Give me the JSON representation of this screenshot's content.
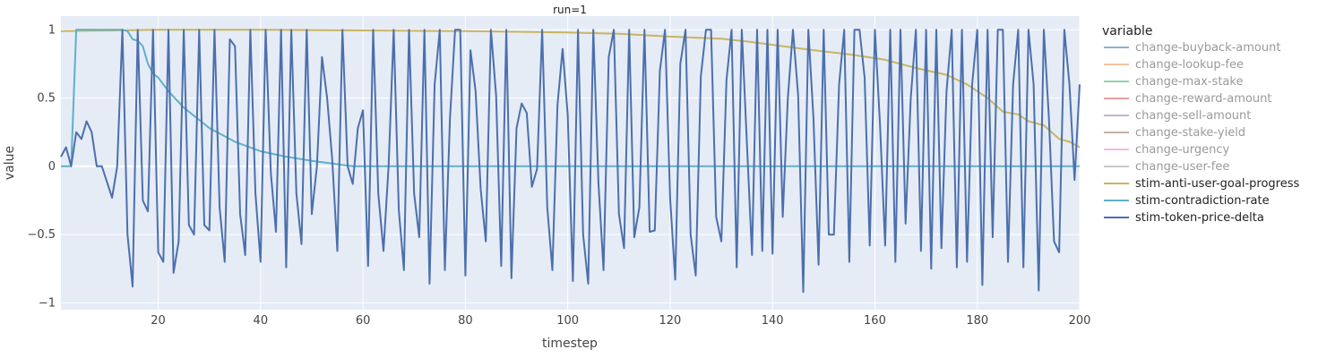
{
  "chart_data": {
    "type": "line",
    "title": "run=1",
    "xlabel": "timestep",
    "ylabel": "value",
    "xlim": [
      1,
      200
    ],
    "ylim": [
      -1.05,
      1.1
    ],
    "x_ticks": [
      20,
      40,
      60,
      80,
      100,
      120,
      140,
      160,
      180,
      200
    ],
    "y_ticks": [
      {
        "value": 1,
        "label": "1"
      },
      {
        "value": 0.5,
        "label": "0.5"
      },
      {
        "value": 0,
        "label": "0"
      },
      {
        "value": -0.5,
        "label": "−0.5"
      },
      {
        "value": -1,
        "label": "−1"
      }
    ],
    "grid": true,
    "legend": {
      "title": "variable",
      "placement": "right"
    },
    "series": [
      {
        "name": "change-buyback-amount",
        "color": "#8fb0d4",
        "muted": true,
        "key_points": []
      },
      {
        "name": "change-lookup-fee",
        "color": "#f3c4a0",
        "muted": true,
        "key_points": []
      },
      {
        "name": "change-max-stake",
        "color": "#93d2a8",
        "muted": true,
        "key_points": []
      },
      {
        "name": "change-reward-amount",
        "color": "#e6a1a2",
        "muted": true,
        "key_points": []
      },
      {
        "name": "change-sell-amount",
        "color": "#c3b3d8",
        "muted": true,
        "key_points": []
      },
      {
        "name": "change-stake-yield",
        "color": "#c4b2a6",
        "muted": true,
        "key_points": []
      },
      {
        "name": "change-urgency",
        "color": "#f0bde0",
        "muted": true,
        "key_points": []
      },
      {
        "name": "change-user-fee",
        "color": "#c8c8c8",
        "muted": true,
        "key_points": []
      },
      {
        "name": "stim-anti-user-goal-progress",
        "color": "#c9b561",
        "muted": false,
        "key_points": [
          [
            1,
            0.99
          ],
          [
            20,
            1.0
          ],
          [
            40,
            1.0
          ],
          [
            60,
            0.995
          ],
          [
            80,
            0.99
          ],
          [
            100,
            0.98
          ],
          [
            110,
            0.97
          ],
          [
            120,
            0.95
          ],
          [
            130,
            0.935
          ],
          [
            136,
            0.91
          ],
          [
            142,
            0.88
          ],
          [
            148,
            0.85
          ],
          [
            155,
            0.82
          ],
          [
            162,
            0.78
          ],
          [
            168,
            0.72
          ],
          [
            174,
            0.67
          ],
          [
            178,
            0.6
          ],
          [
            182,
            0.5
          ],
          [
            185,
            0.4
          ],
          [
            188,
            0.38
          ],
          [
            190,
            0.33
          ],
          [
            193,
            0.3
          ],
          [
            196,
            0.2
          ],
          [
            198,
            0.18
          ],
          [
            200,
            0.14
          ]
        ]
      },
      {
        "name": "stim-contradiction-rate",
        "color": "#5fb0c8",
        "muted": false,
        "key_points": [
          [
            1,
            0.0
          ],
          [
            2,
            0.0
          ],
          [
            3,
            0.0
          ],
          [
            4,
            1.0
          ],
          [
            10,
            1.0
          ],
          [
            13,
            1.0
          ],
          [
            14,
            0.99
          ],
          [
            15,
            0.93
          ],
          [
            16,
            0.92
          ],
          [
            17,
            0.88
          ],
          [
            18,
            0.75
          ],
          [
            19,
            0.68
          ],
          [
            20,
            0.65
          ],
          [
            22,
            0.55
          ],
          [
            25,
            0.43
          ],
          [
            30,
            0.28
          ],
          [
            35,
            0.18
          ],
          [
            40,
            0.11
          ],
          [
            45,
            0.07
          ],
          [
            50,
            0.04
          ],
          [
            55,
            0.015
          ],
          [
            58,
            0.0
          ],
          [
            200,
            0.0
          ]
        ]
      },
      {
        "name": "stim-token-price-delta",
        "color": "#4c6fad",
        "muted": false,
        "points_note": "",
        "key_points": [
          [
            1,
            0.07
          ],
          [
            2,
            0.14
          ],
          [
            3,
            0.0
          ],
          [
            4,
            0.25
          ],
          [
            5,
            0.2
          ],
          [
            6,
            0.33
          ],
          [
            7,
            0.25
          ],
          [
            8,
            0.0
          ],
          [
            9,
            0.0
          ],
          [
            11,
            -0.23
          ],
          [
            12,
            0.0
          ],
          [
            13,
            1.0
          ],
          [
            14,
            -0.5
          ],
          [
            15,
            -0.88
          ],
          [
            16,
            1.0
          ],
          [
            17,
            -0.25
          ],
          [
            18,
            -0.33
          ],
          [
            19,
            1.0
          ],
          [
            20,
            -0.63
          ],
          [
            21,
            -0.7
          ],
          [
            22,
            1.0
          ],
          [
            23,
            -0.78
          ],
          [
            24,
            -0.55
          ],
          [
            25,
            1.0
          ],
          [
            26,
            -0.43
          ],
          [
            27,
            -0.5
          ],
          [
            28,
            1.0
          ],
          [
            29,
            -0.43
          ],
          [
            30,
            -0.47
          ],
          [
            31,
            1.0
          ],
          [
            32,
            -0.3
          ],
          [
            33,
            -0.7
          ],
          [
            34,
            0.93
          ],
          [
            35,
            0.88
          ],
          [
            36,
            -0.35
          ],
          [
            37,
            -0.65
          ],
          [
            38,
            1.0
          ],
          [
            39,
            -0.2
          ],
          [
            40,
            -0.7
          ],
          [
            41,
            1.0
          ],
          [
            42,
            -0.05
          ],
          [
            43,
            -0.48
          ],
          [
            44,
            1.0
          ],
          [
            45,
            -0.74
          ],
          [
            46,
            1.0
          ],
          [
            47,
            -0.2
          ],
          [
            48,
            -0.57
          ],
          [
            49,
            1.0
          ],
          [
            50,
            -0.35
          ],
          [
            51,
            0.0
          ],
          [
            52,
            0.8
          ],
          [
            53,
            0.5
          ],
          [
            54,
            0.05
          ],
          [
            55,
            -0.62
          ],
          [
            56,
            1.0
          ],
          [
            57,
            0.0
          ],
          [
            58,
            -0.13
          ],
          [
            59,
            0.28
          ],
          [
            60,
            0.41
          ],
          [
            61,
            -0.73
          ],
          [
            62,
            1.0
          ],
          [
            63,
            -0.2
          ],
          [
            64,
            -0.62
          ],
          [
            65,
            0.0
          ],
          [
            66,
            1.0
          ],
          [
            67,
            -0.32
          ],
          [
            68,
            -0.76
          ],
          [
            69,
            1.0
          ],
          [
            70,
            -0.2
          ],
          [
            71,
            -0.52
          ],
          [
            72,
            1.0
          ],
          [
            73,
            -0.86
          ],
          [
            74,
            0.6
          ],
          [
            75,
            1.0
          ],
          [
            76,
            -0.76
          ],
          [
            77,
            0.35
          ],
          [
            78,
            1.0
          ],
          [
            79,
            1.0
          ],
          [
            80,
            -0.8
          ],
          [
            81,
            0.85
          ],
          [
            82,
            0.55
          ],
          [
            83,
            -0.17
          ],
          [
            84,
            -0.55
          ],
          [
            85,
            1.0
          ],
          [
            86,
            0.52
          ],
          [
            87,
            -0.73
          ],
          [
            88,
            1.0
          ],
          [
            89,
            -0.82
          ],
          [
            90,
            0.28
          ],
          [
            91,
            0.46
          ],
          [
            92,
            0.39
          ],
          [
            93,
            -0.15
          ],
          [
            94,
            -0.02
          ],
          [
            95,
            1.0
          ],
          [
            96,
            -0.3
          ],
          [
            97,
            -0.76
          ],
          [
            98,
            0.45
          ],
          [
            99,
            0.86
          ],
          [
            100,
            0.38
          ],
          [
            101,
            -0.84
          ],
          [
            102,
            1.0
          ],
          [
            103,
            -0.5
          ],
          [
            104,
            -0.86
          ],
          [
            105,
            1.0
          ],
          [
            106,
            -0.12
          ],
          [
            107,
            -0.76
          ],
          [
            108,
            0.8
          ],
          [
            109,
            1.0
          ],
          [
            110,
            -0.35
          ],
          [
            111,
            -0.6
          ],
          [
            112,
            1.0
          ],
          [
            113,
            -0.52
          ],
          [
            114,
            -0.3
          ],
          [
            115,
            1.0
          ],
          [
            116,
            -0.48
          ],
          [
            117,
            -0.47
          ],
          [
            118,
            0.7
          ],
          [
            119,
            1.0
          ],
          [
            120,
            -0.23
          ],
          [
            121,
            -0.83
          ],
          [
            122,
            0.75
          ],
          [
            123,
            1.0
          ],
          [
            124,
            -0.5
          ],
          [
            125,
            -0.8
          ],
          [
            126,
            0.66
          ],
          [
            127,
            1.0
          ],
          [
            128,
            1.0
          ],
          [
            129,
            -0.37
          ],
          [
            130,
            -0.55
          ],
          [
            131,
            0.63
          ],
          [
            132,
            1.0
          ],
          [
            133,
            -0.74
          ],
          [
            134,
            1.0
          ],
          [
            135,
            0.17
          ],
          [
            136,
            -0.65
          ],
          [
            137,
            1.0
          ],
          [
            138,
            -0.62
          ],
          [
            139,
            1.0
          ],
          [
            140,
            -0.64
          ],
          [
            141,
            1.0
          ],
          [
            142,
            -0.37
          ],
          [
            143,
            0.5
          ],
          [
            144,
            1.0
          ],
          [
            145,
            0.52
          ],
          [
            146,
            -0.92
          ],
          [
            147,
            1.0
          ],
          [
            148,
            0.35
          ],
          [
            149,
            -0.72
          ],
          [
            150,
            1.0
          ],
          [
            151,
            -0.5
          ],
          [
            152,
            -0.5
          ],
          [
            153,
            0.6
          ],
          [
            154,
            1.0
          ],
          [
            155,
            -0.7
          ],
          [
            156,
            1.0
          ],
          [
            157,
            1.0
          ],
          [
            158,
            0.65
          ],
          [
            159,
            -0.58
          ],
          [
            160,
            1.0
          ],
          [
            161,
            0.3
          ],
          [
            162,
            -0.58
          ],
          [
            163,
            1.0
          ],
          [
            164,
            -0.7
          ],
          [
            165,
            1.0
          ],
          [
            166,
            -0.42
          ],
          [
            167,
            0.5
          ],
          [
            168,
            1.0
          ],
          [
            169,
            -0.62
          ],
          [
            170,
            1.0
          ],
          [
            171,
            -0.75
          ],
          [
            172,
            1.0
          ],
          [
            173,
            -0.6
          ],
          [
            174,
            0.55
          ],
          [
            175,
            1.0
          ],
          [
            176,
            -0.74
          ],
          [
            177,
            1.0
          ],
          [
            178,
            -0.7
          ],
          [
            179,
            0.6
          ],
          [
            180,
            1.0
          ],
          [
            181,
            -0.87
          ],
          [
            182,
            1.0
          ],
          [
            183,
            -0.52
          ],
          [
            184,
            1.0
          ],
          [
            185,
            1.0
          ],
          [
            186,
            -0.7
          ],
          [
            187,
            0.6
          ],
          [
            188,
            1.0
          ],
          [
            189,
            -0.74
          ],
          [
            190,
            1.0
          ],
          [
            191,
            0.6
          ],
          [
            192,
            -0.91
          ],
          [
            193,
            1.0
          ],
          [
            194,
            0.35
          ],
          [
            195,
            -0.55
          ],
          [
            196,
            -0.63
          ],
          [
            197,
            1.0
          ],
          [
            198,
            0.6
          ],
          [
            199,
            -0.1
          ],
          [
            200,
            0.6
          ]
        ]
      }
    ]
  }
}
